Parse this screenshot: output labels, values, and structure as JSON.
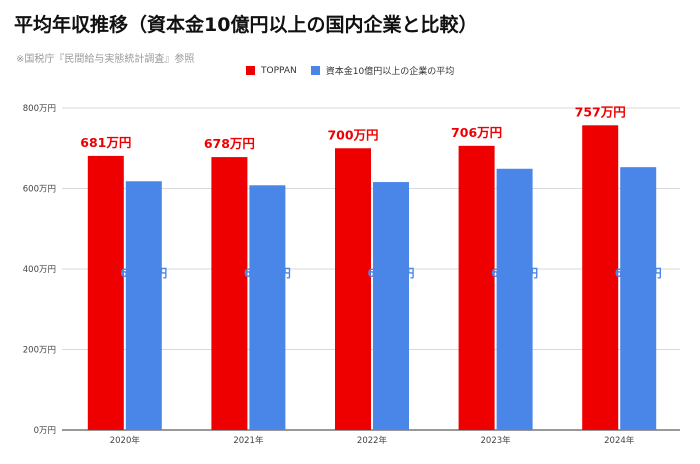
{
  "title": "平均年収推移（資本金10億円以上の国内企業と比較）",
  "subtitle": "※国税庁『民間給与実態統計調査』参照",
  "colors": {
    "toppan": "#ee0000",
    "average": "#4a86e8",
    "grid": "#d9d9d9",
    "axis_text": "#444444"
  },
  "chart_data": {
    "type": "bar",
    "categories": [
      "2020年",
      "2021年",
      "2022年",
      "2023年",
      "2024年"
    ],
    "series": [
      {
        "name": "TOPPAN",
        "values": [
          681,
          678,
          700,
          706,
          757
        ],
        "labels": [
          "681万円",
          "678万円",
          "700万円",
          "706万円",
          "757万円"
        ]
      },
      {
        "name": "資本金10億円以上の企業の平均",
        "values": [
          618,
          608,
          616,
          649,
          653
        ],
        "labels": [
          "618万円",
          "608万円",
          "616万円",
          "649万円",
          "653万円"
        ]
      }
    ],
    "ylim": [
      0,
      800
    ],
    "yticks": [
      0,
      200,
      400,
      600,
      800
    ],
    "ytick_labels": [
      "0万円",
      "200万円",
      "400万円",
      "600万円",
      "800万円"
    ],
    "grid": true,
    "legend_position": "top-center"
  }
}
